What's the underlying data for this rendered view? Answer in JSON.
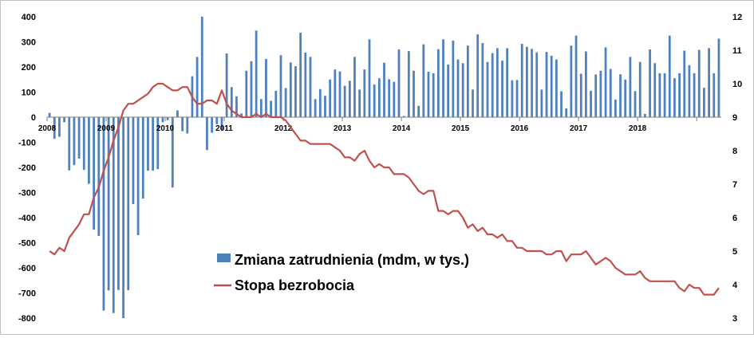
{
  "chart_data": {
    "type": "bar+line",
    "left_axis": {
      "min": -800,
      "max": 400,
      "ticks": [
        "400",
        "300",
        "200",
        "100",
        "0",
        "-100",
        "-200",
        "-300",
        "-400",
        "-500",
        "-600",
        "-700",
        "-800"
      ]
    },
    "right_axis": {
      "min": 3,
      "max": 12,
      "ticks": [
        "12",
        "11",
        "10",
        "9",
        "8",
        "7",
        "6",
        "5",
        "4",
        "3"
      ]
    },
    "years": [
      "2008",
      "2009",
      "2010",
      "2011",
      "2012",
      "2013",
      "2014",
      "2015",
      "2016",
      "2017",
      "2018"
    ],
    "series": [
      {
        "name": "Zmiana zatrudnienia (mdm, w tys.)",
        "kind": "bar",
        "axis": "left",
        "color": "#4f81bd",
        "values": [
          17,
          -86,
          -78,
          -20,
          -212,
          -191,
          -165,
          -210,
          -265,
          -448,
          -473,
          -770,
          -690,
          -780,
          -688,
          -800,
          -689,
          -346,
          -470,
          -324,
          -213,
          -213,
          -207,
          -20,
          -12,
          -280,
          27,
          -56,
          -65,
          163,
          240,
          400,
          -131,
          -62,
          -28,
          -50,
          254,
          120,
          83,
          15,
          185,
          223,
          345,
          72,
          232,
          65,
          105,
          247,
          116,
          218,
          203,
          336,
          257,
          240,
          72,
          112,
          85,
          150,
          190,
          182,
          125,
          145,
          240,
          110,
          190,
          310,
          130,
          155,
          217,
          151,
          141,
          270,
          5,
          263,
          185,
          45,
          290,
          181,
          175,
          271,
          310,
          210,
          305,
          230,
          215,
          285,
          110,
          330,
          295,
          220,
          255,
          275,
          225,
          275,
          147,
          148,
          292,
          280,
          272,
          258,
          110,
          260,
          245,
          230,
          103,
          35,
          285,
          325,
          173,
          262,
          105,
          170,
          185,
          278,
          192,
          70,
          171,
          150,
          240,
          104,
          220,
          13,
          270,
          215,
          175,
          175,
          325,
          155,
          175,
          265,
          207,
          175,
          268,
          117,
          275,
          175,
          313
        ]
      },
      {
        "name": "Stopa bezrobocia",
        "kind": "line",
        "axis": "right",
        "color": "#c0504d",
        "values": [
          5.0,
          4.9,
          5.1,
          5.0,
          5.4,
          5.6,
          5.8,
          6.1,
          6.1,
          6.6,
          6.9,
          7.4,
          7.8,
          8.3,
          8.7,
          9.2,
          9.4,
          9.4,
          9.5,
          9.6,
          9.7,
          9.9,
          10.0,
          10.0,
          9.9,
          9.8,
          9.8,
          9.9,
          9.9,
          9.6,
          9.4,
          9.4,
          9.5,
          9.5,
          9.4,
          9.8,
          9.4,
          9.2,
          9.1,
          9.0,
          9.0,
          9.0,
          9.1,
          9.0,
          9.1,
          9.0,
          9.0,
          9.0,
          8.9,
          8.7,
          8.5,
          8.3,
          8.3,
          8.2,
          8.2,
          8.2,
          8.2,
          8.2,
          8.1,
          8.0,
          7.8,
          7.8,
          7.7,
          7.9,
          8.0,
          7.7,
          7.5,
          7.6,
          7.5,
          7.5,
          7.3,
          7.3,
          7.3,
          7.2,
          7.0,
          6.8,
          6.7,
          6.8,
          6.8,
          6.2,
          6.2,
          6.1,
          6.2,
          6.2,
          6.0,
          5.7,
          5.8,
          5.6,
          5.7,
          5.5,
          5.5,
          5.4,
          5.5,
          5.3,
          5.3,
          5.1,
          5.1,
          5.0,
          5.0,
          5.0,
          5.0,
          4.9,
          4.9,
          5.0,
          5.0,
          4.7,
          4.9,
          4.9,
          4.9,
          5.0,
          4.8,
          4.6,
          4.7,
          4.8,
          4.7,
          4.5,
          4.4,
          4.3,
          4.3,
          4.3,
          4.4,
          4.2,
          4.1,
          4.1,
          4.1,
          4.1,
          4.1,
          4.1,
          3.9,
          3.8,
          4.0,
          3.9,
          3.9,
          3.7,
          3.7,
          3.7,
          3.9
        ]
      }
    ]
  }
}
